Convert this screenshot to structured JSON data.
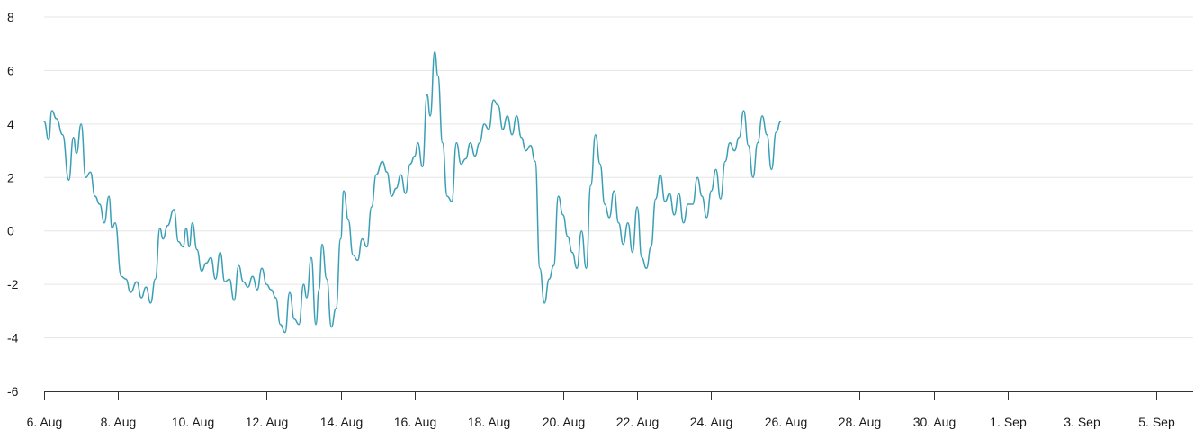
{
  "chart_data": {
    "type": "line",
    "title": "",
    "xlabel": "",
    "ylabel": "",
    "grid": true,
    "legend": "none",
    "x_range": [
      "2024-08-06",
      "2024-09-06"
    ],
    "ylim": [
      -6,
      8
    ],
    "y_ticks": [
      -6,
      -4,
      -2,
      0,
      2,
      4,
      6,
      8
    ],
    "y_tick_labels": [
      "-6",
      "-4",
      "-2",
      "0",
      "2",
      "4",
      "6",
      "8"
    ],
    "x_ticks": [
      "2024-08-06",
      "2024-08-08",
      "2024-08-10",
      "2024-08-12",
      "2024-08-14",
      "2024-08-16",
      "2024-08-18",
      "2024-08-20",
      "2024-08-22",
      "2024-08-24",
      "2024-08-26",
      "2024-08-28",
      "2024-08-30",
      "2024-09-01",
      "2024-09-03",
      "2024-09-05"
    ],
    "x_tick_labels": [
      "6. Aug",
      "8. Aug",
      "10. Aug",
      "12. Aug",
      "14. Aug",
      "16. Aug",
      "18. Aug",
      "20. Aug",
      "22. Aug",
      "24. Aug",
      "26. Aug",
      "28. Aug",
      "30. Aug",
      "1. Sep",
      "3. Sep",
      "5. Sep"
    ],
    "series": [
      {
        "color": "#3a9fb5",
        "points": [
          [
            "2024-08-06T00:00",
            4.1
          ],
          [
            "2024-08-06T03:00",
            3.4
          ],
          [
            "2024-08-06T05:00",
            4.5
          ],
          [
            "2024-08-06T08:00",
            4.2
          ],
          [
            "2024-08-06T12:00",
            3.6
          ],
          [
            "2024-08-06T16:00",
            1.9
          ],
          [
            "2024-08-06T19:00",
            3.5
          ],
          [
            "2024-08-06T21:00",
            2.9
          ],
          [
            "2024-08-07T00:00",
            4.0
          ],
          [
            "2024-08-07T03:00",
            2.0
          ],
          [
            "2024-08-07T06:00",
            2.2
          ],
          [
            "2024-08-07T09:00",
            1.3
          ],
          [
            "2024-08-07T12:00",
            1.0
          ],
          [
            "2024-08-07T15:00",
            0.3
          ],
          [
            "2024-08-07T18:00",
            1.3
          ],
          [
            "2024-08-07T20:00",
            0.1
          ],
          [
            "2024-08-07T22:00",
            0.3
          ],
          [
            "2024-08-08T02:00",
            -1.7
          ],
          [
            "2024-08-08T05:00",
            -1.8
          ],
          [
            "2024-08-08T08:00",
            -2.3
          ],
          [
            "2024-08-08T12:00",
            -1.9
          ],
          [
            "2024-08-08T15:00",
            -2.5
          ],
          [
            "2024-08-08T18:00",
            -2.1
          ],
          [
            "2024-08-08T21:00",
            -2.7
          ],
          [
            "2024-08-09T00:00",
            -1.8
          ],
          [
            "2024-08-09T03:00",
            0.1
          ],
          [
            "2024-08-09T05:00",
            -0.3
          ],
          [
            "2024-08-09T08:00",
            0.2
          ],
          [
            "2024-08-09T12:00",
            0.8
          ],
          [
            "2024-08-09T15:00",
            -0.4
          ],
          [
            "2024-08-09T18:00",
            -0.6
          ],
          [
            "2024-08-09T20:00",
            0.1
          ],
          [
            "2024-08-09T22:00",
            -0.6
          ],
          [
            "2024-08-10T00:00",
            0.3
          ],
          [
            "2024-08-10T03:00",
            -0.7
          ],
          [
            "2024-08-10T06:00",
            -1.5
          ],
          [
            "2024-08-10T09:00",
            -1.2
          ],
          [
            "2024-08-10T12:00",
            -1.0
          ],
          [
            "2024-08-10T15:00",
            -1.8
          ],
          [
            "2024-08-10T18:00",
            -0.8
          ],
          [
            "2024-08-10T21:00",
            -1.9
          ],
          [
            "2024-08-11T00:00",
            -1.8
          ],
          [
            "2024-08-11T03:00",
            -2.6
          ],
          [
            "2024-08-11T06:00",
            -1.3
          ],
          [
            "2024-08-11T09:00",
            -1.9
          ],
          [
            "2024-08-11T12:00",
            -2.1
          ],
          [
            "2024-08-11T15:00",
            -1.7
          ],
          [
            "2024-08-11T18:00",
            -2.2
          ],
          [
            "2024-08-11T21:00",
            -1.4
          ],
          [
            "2024-08-12T00:00",
            -2.0
          ],
          [
            "2024-08-12T03:00",
            -2.2
          ],
          [
            "2024-08-12T06:00",
            -2.5
          ],
          [
            "2024-08-12T09:00",
            -3.5
          ],
          [
            "2024-08-12T12:00",
            -3.8
          ],
          [
            "2024-08-12T15:00",
            -2.3
          ],
          [
            "2024-08-12T18:00",
            -3.3
          ],
          [
            "2024-08-12T21:00",
            -3.5
          ],
          [
            "2024-08-13T00:00",
            -2.0
          ],
          [
            "2024-08-13T02:00",
            -2.5
          ],
          [
            "2024-08-13T05:00",
            -1.0
          ],
          [
            "2024-08-13T08:00",
            -3.5
          ],
          [
            "2024-08-13T10:00",
            -2.2
          ],
          [
            "2024-08-13T12:00",
            -0.5
          ],
          [
            "2024-08-13T15:00",
            -1.8
          ],
          [
            "2024-08-13T18:00",
            -3.6
          ],
          [
            "2024-08-13T21:00",
            -2.9
          ],
          [
            "2024-08-14T00:00",
            -0.3
          ],
          [
            "2024-08-14T02:00",
            1.5
          ],
          [
            "2024-08-14T05:00",
            0.4
          ],
          [
            "2024-08-14T08:00",
            -0.9
          ],
          [
            "2024-08-14T11:00",
            -1.1
          ],
          [
            "2024-08-14T14:00",
            -0.3
          ],
          [
            "2024-08-14T17:00",
            -0.6
          ],
          [
            "2024-08-14T20:00",
            0.9
          ],
          [
            "2024-08-14T23:00",
            2.1
          ],
          [
            "2024-08-15T03:00",
            2.6
          ],
          [
            "2024-08-15T06:00",
            2.2
          ],
          [
            "2024-08-15T09:00",
            1.3
          ],
          [
            "2024-08-15T12:00",
            1.6
          ],
          [
            "2024-08-15T15:00",
            2.1
          ],
          [
            "2024-08-15T18:00",
            1.4
          ],
          [
            "2024-08-15T21:00",
            2.5
          ],
          [
            "2024-08-16T00:00",
            2.8
          ],
          [
            "2024-08-16T02:00",
            3.3
          ],
          [
            "2024-08-16T05:00",
            2.4
          ],
          [
            "2024-08-16T08:00",
            5.1
          ],
          [
            "2024-08-16T10:00",
            4.3
          ],
          [
            "2024-08-16T13:00",
            6.7
          ],
          [
            "2024-08-16T15:00",
            5.8
          ],
          [
            "2024-08-16T18:00",
            3.3
          ],
          [
            "2024-08-16T21:00",
            1.3
          ],
          [
            "2024-08-17T00:00",
            1.1
          ],
          [
            "2024-08-17T03:00",
            3.3
          ],
          [
            "2024-08-17T06:00",
            2.5
          ],
          [
            "2024-08-17T09:00",
            2.7
          ],
          [
            "2024-08-17T12:00",
            3.3
          ],
          [
            "2024-08-17T15:00",
            2.8
          ],
          [
            "2024-08-17T18:00",
            3.3
          ],
          [
            "2024-08-17T21:00",
            4.0
          ],
          [
            "2024-08-18T00:00",
            3.8
          ],
          [
            "2024-08-18T03:00",
            4.9
          ],
          [
            "2024-08-18T06:00",
            4.7
          ],
          [
            "2024-08-18T09:00",
            3.8
          ],
          [
            "2024-08-18T12:00",
            4.3
          ],
          [
            "2024-08-18T15:00",
            3.6
          ],
          [
            "2024-08-18T18:00",
            4.3
          ],
          [
            "2024-08-18T21:00",
            3.5
          ],
          [
            "2024-08-19T00:00",
            3.0
          ],
          [
            "2024-08-19T03:00",
            3.2
          ],
          [
            "2024-08-19T06:00",
            2.6
          ],
          [
            "2024-08-19T09:00",
            -1.4
          ],
          [
            "2024-08-19T12:00",
            -2.7
          ],
          [
            "2024-08-19T15:00",
            -1.8
          ],
          [
            "2024-08-19T18:00",
            -1.3
          ],
          [
            "2024-08-19T21:00",
            1.3
          ],
          [
            "2024-08-20T00:00",
            0.6
          ],
          [
            "2024-08-20T03:00",
            -0.2
          ],
          [
            "2024-08-20T06:00",
            -0.8
          ],
          [
            "2024-08-20T09:00",
            -1.4
          ],
          [
            "2024-08-20T12:00",
            0.0
          ],
          [
            "2024-08-20T15:00",
            -1.4
          ],
          [
            "2024-08-20T18:00",
            1.7
          ],
          [
            "2024-08-20T21:00",
            3.6
          ],
          [
            "2024-08-21T00:00",
            2.5
          ],
          [
            "2024-08-21T03:00",
            1.0
          ],
          [
            "2024-08-21T06:00",
            0.5
          ],
          [
            "2024-08-21T09:00",
            1.5
          ],
          [
            "2024-08-21T12:00",
            0.3
          ],
          [
            "2024-08-21T15:00",
            -0.5
          ],
          [
            "2024-08-21T18:00",
            0.3
          ],
          [
            "2024-08-21T21:00",
            -0.8
          ],
          [
            "2024-08-22T00:00",
            0.9
          ],
          [
            "2024-08-22T03:00",
            -1.0
          ],
          [
            "2024-08-22T06:00",
            -1.4
          ],
          [
            "2024-08-22T09:00",
            -0.6
          ],
          [
            "2024-08-22T12:00",
            1.2
          ],
          [
            "2024-08-22T15:00",
            2.1
          ],
          [
            "2024-08-22T18:00",
            1.1
          ],
          [
            "2024-08-22T21:00",
            1.4
          ],
          [
            "2024-08-23T00:00",
            0.6
          ],
          [
            "2024-08-23T03:00",
            1.4
          ],
          [
            "2024-08-23T06:00",
            0.3
          ],
          [
            "2024-08-23T09:00",
            1.0
          ],
          [
            "2024-08-23T12:00",
            1.0
          ],
          [
            "2024-08-23T15:00",
            2.0
          ],
          [
            "2024-08-23T18:00",
            1.3
          ],
          [
            "2024-08-23T21:00",
            0.5
          ],
          [
            "2024-08-24T00:00",
            1.5
          ],
          [
            "2024-08-24T03:00",
            2.3
          ],
          [
            "2024-08-24T06:00",
            1.2
          ],
          [
            "2024-08-24T09:00",
            2.6
          ],
          [
            "2024-08-24T12:00",
            3.3
          ],
          [
            "2024-08-24T15:00",
            3.0
          ],
          [
            "2024-08-24T18:00",
            3.5
          ],
          [
            "2024-08-24T21:00",
            4.5
          ],
          [
            "2024-08-25T00:00",
            3.2
          ],
          [
            "2024-08-25T03:00",
            2.0
          ],
          [
            "2024-08-25T06:00",
            3.3
          ],
          [
            "2024-08-25T09:00",
            4.3
          ],
          [
            "2024-08-25T12:00",
            3.6
          ],
          [
            "2024-08-25T15:00",
            2.3
          ],
          [
            "2024-08-25T18:00",
            3.7
          ],
          [
            "2024-08-25T21:00",
            4.1
          ]
        ]
      }
    ]
  }
}
